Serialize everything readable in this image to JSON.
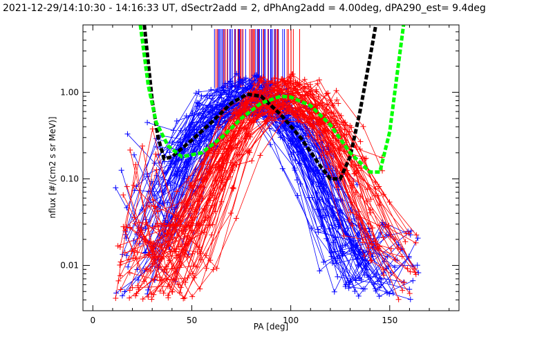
{
  "chart_data": {
    "type": "line",
    "title": "2021-12-29/14:10:30 - 14:16:33 UT, dSectr2add = 2, dPhAng2add = 4.00deg, dPA290_est=   9.4deg",
    "xlabel": "PA [deg]",
    "ylabel": "nflux [#/(cm2 s sr MeV)]",
    "xlim": [
      -5,
      185
    ],
    "ylim": [
      0.003,
      6
    ],
    "yscale": "log",
    "x_ticks": [
      0,
      50,
      100,
      150
    ],
    "y_ticks": [
      0.01,
      0.1,
      1.0
    ],
    "x_tick_labels": [
      "0",
      "50",
      "100",
      "150"
    ],
    "y_tick_labels": [
      "0.01",
      "0.10",
      "1.00"
    ],
    "grid": false,
    "colors": {
      "blue": "#0000ff",
      "red": "#ff0000",
      "black": "#000000",
      "green": "#00ff00",
      "axis": "#000000"
    },
    "series": [
      {
        "color": "blue",
        "kind": "pitch-angle distributions (many spectra)",
        "peak_pa": 78,
        "peak_value": 0.95,
        "count": 70
      },
      {
        "color": "red",
        "kind": "pitch-angle distributions (many spectra)",
        "peak_pa": 97,
        "peak_value": 0.92,
        "count": 70
      },
      {
        "color": "black",
        "kind": "dashed fit",
        "points": [
          [
            26,
            6
          ],
          [
            30,
            0.8
          ],
          [
            33,
            0.3
          ],
          [
            36,
            0.17
          ],
          [
            40,
            0.18
          ],
          [
            50,
            0.28
          ],
          [
            60,
            0.45
          ],
          [
            70,
            0.75
          ],
          [
            78,
            0.95
          ],
          [
            85,
            0.9
          ],
          [
            95,
            0.55
          ],
          [
            105,
            0.3
          ],
          [
            115,
            0.14
          ],
          [
            120,
            0.1
          ],
          [
            125,
            0.1
          ],
          [
            130,
            0.18
          ],
          [
            135,
            0.6
          ],
          [
            140,
            2.5
          ],
          [
            143,
            6
          ]
        ]
      },
      {
        "color": "green",
        "kind": "dashed fit",
        "points": [
          [
            24,
            6
          ],
          [
            28,
            1.2
          ],
          [
            32,
            0.45
          ],
          [
            38,
            0.24
          ],
          [
            45,
            0.18
          ],
          [
            55,
            0.2
          ],
          [
            65,
            0.3
          ],
          [
            75,
            0.5
          ],
          [
            85,
            0.75
          ],
          [
            95,
            0.9
          ],
          [
            100,
            0.88
          ],
          [
            110,
            0.7
          ],
          [
            120,
            0.42
          ],
          [
            130,
            0.2
          ],
          [
            140,
            0.12
          ],
          [
            145,
            0.12
          ],
          [
            150,
            0.35
          ],
          [
            153,
            1.2
          ],
          [
            157,
            6
          ]
        ]
      }
    ],
    "vertical_markers": [
      {
        "color": "blue",
        "pa_range": [
          57,
          97
        ],
        "count": 40
      },
      {
        "color": "red",
        "pa_range": [
          62,
          107
        ],
        "count": 32
      }
    ]
  }
}
